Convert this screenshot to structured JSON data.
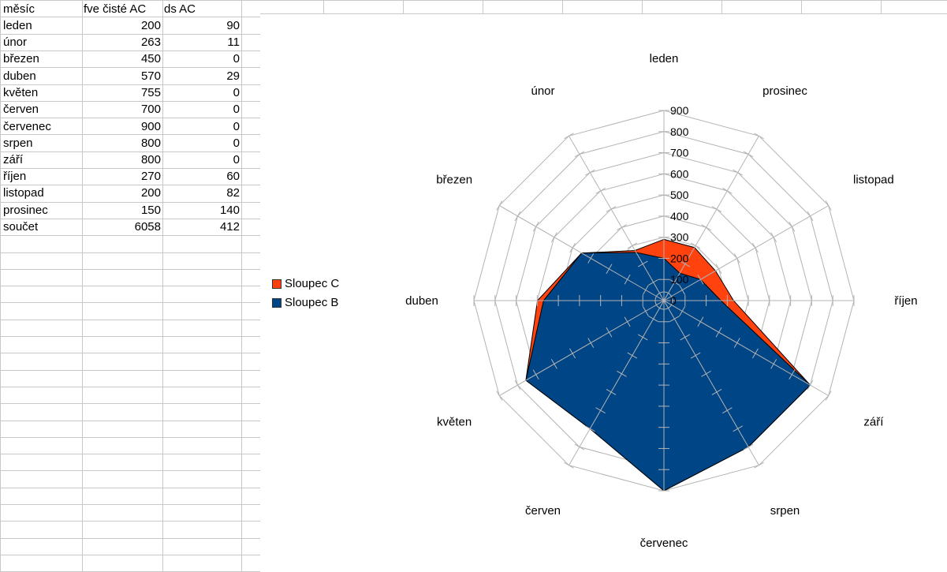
{
  "sheet": {
    "headers": [
      "měsíc",
      "fve čisté AC",
      "ds AC"
    ],
    "rows": [
      [
        "leden",
        "200",
        "90"
      ],
      [
        "únor",
        "263",
        "11"
      ],
      [
        "březen",
        "450",
        "0"
      ],
      [
        "duben",
        "570",
        "29"
      ],
      [
        "květen",
        "755",
        "0"
      ],
      [
        "červen",
        "700",
        "0"
      ],
      [
        "červenec",
        "900",
        "0"
      ],
      [
        "srpen",
        "800",
        "0"
      ],
      [
        "září",
        "800",
        "0"
      ],
      [
        "říjen",
        "270",
        "60"
      ],
      [
        "listopad",
        "200",
        "82"
      ],
      [
        "prosinec",
        "150",
        "140"
      ],
      [
        "součet",
        "6058",
        "412"
      ]
    ]
  },
  "chart_data": {
    "type": "radar",
    "categories": [
      "leden",
      "prosinec",
      "listopad",
      "říjen",
      "září",
      "srpen",
      "červenec",
      "červen",
      "květen",
      "duben",
      "březen",
      "únor"
    ],
    "series": [
      {
        "name": "Sloupec B",
        "color": "#004586",
        "values": [
          200,
          150,
          200,
          270,
          800,
          800,
          900,
          700,
          755,
          570,
          450,
          263
        ]
      },
      {
        "name": "Sloupec C",
        "color": "#ff420e",
        "values": [
          90,
          140,
          82,
          60,
          0,
          0,
          0,
          0,
          0,
          29,
          0,
          11
        ]
      }
    ],
    "stacked": true,
    "ylim": [
      0,
      900
    ],
    "ticks": [
      "0",
      "100",
      "200",
      "300",
      "400",
      "500",
      "600",
      "700",
      "800",
      "900"
    ],
    "legend": [
      {
        "name": "Sloupec C",
        "color": "#ff420e"
      },
      {
        "name": "Sloupec B",
        "color": "#004586"
      }
    ],
    "legend_position": "left",
    "grid": true
  }
}
